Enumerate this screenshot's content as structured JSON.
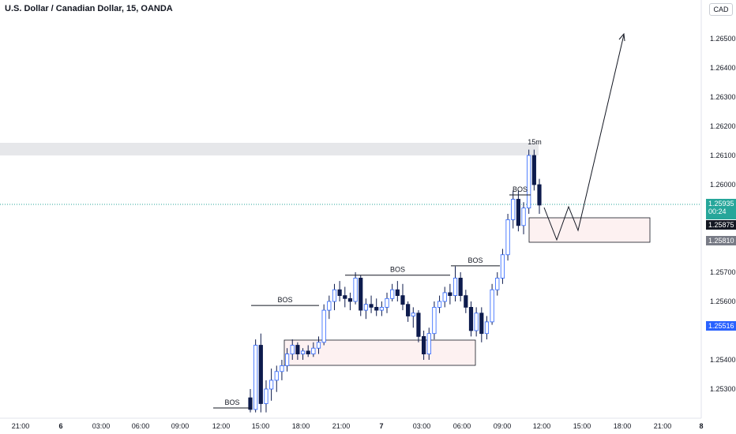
{
  "header": {
    "title": "U.S. Dollar / Canadian Dollar, 15, OANDA",
    "currency": "CAD"
  },
  "price_tags": {
    "current": "1.25935",
    "countdown": "00:24",
    "level_a": "1.25875",
    "level_b": "1.25810",
    "level_c": "1.25516"
  },
  "colors": {
    "candle_body": "#2962ff",
    "candle_dark": "#0d1b4d",
    "zone_fill": "#fdf1f1",
    "supply_band": "#e6e7ea",
    "teal": "#26a69a",
    "navy": "#131722"
  },
  "chart_data": {
    "type": "candlestick",
    "title": "U.S. Dollar / Canadian Dollar, 15, OANDA",
    "x_tick_labels": [
      "21:00",
      "6",
      "03:00",
      "06:00",
      "09:00",
      "12:00",
      "15:00",
      "18:00",
      "21:00",
      "7",
      "03:00",
      "06:00",
      "09:00",
      "12:00",
      "15:00",
      "18:00",
      "21:00",
      "8"
    ],
    "y_tick_labels": [
      "1.26500",
      "1.26400",
      "1.26300",
      "1.26200",
      "1.26100",
      "1.26000",
      "1.25700",
      "1.25600",
      "1.25400",
      "1.25300"
    ],
    "ylim": [
      1.2524,
      1.2675
    ],
    "annotations": [
      {
        "text": "BOS",
        "level": 1.25235,
        "from": "12:00",
        "to": "15:00"
      },
      {
        "text": "BOS",
        "level": 1.25586,
        "from": "15:00",
        "to": "18:00"
      },
      {
        "text": "BOS",
        "level": 1.2569,
        "from": "21:00",
        "to": "06:00"
      },
      {
        "text": "BOS",
        "level": 1.25722,
        "from": "06:00",
        "to": "09:00"
      },
      {
        "text": "BOS",
        "level": 1.25965,
        "from": "09:00",
        "to": "12:00"
      },
      {
        "text": "15m",
        "level": 1.26127,
        "from": "12:00",
        "to": "12:00"
      }
    ],
    "series": [
      {
        "ohlc": [
          [
            1.2527,
            1.253,
            1.2522,
            1.2523
          ],
          [
            1.2523,
            1.2547,
            1.2522,
            1.2545
          ],
          [
            1.2545,
            1.2549,
            1.2522,
            1.2525
          ],
          [
            1.2525,
            1.2533,
            1.2522,
            1.253
          ],
          [
            1.253,
            1.2537,
            1.2526,
            1.2533
          ],
          [
            1.2533,
            1.2538,
            1.2529,
            1.2536
          ],
          [
            1.2536,
            1.254,
            1.2533,
            1.2538
          ],
          [
            1.2538,
            1.2544,
            1.2536,
            1.2542
          ],
          [
            1.2542,
            1.2547,
            1.254,
            1.2545
          ],
          [
            1.2545,
            1.2546,
            1.254,
            1.2542
          ],
          [
            1.2542,
            1.2544,
            1.254,
            1.2543
          ],
          [
            1.2543,
            1.2545,
            1.2541,
            1.2542
          ],
          [
            1.2542,
            1.2546,
            1.2541,
            1.2544
          ],
          [
            1.2544,
            1.2548,
            1.2542,
            1.2546
          ],
          [
            1.2546,
            1.2559,
            1.2545,
            1.2557
          ],
          [
            1.2557,
            1.2562,
            1.2554,
            1.256
          ],
          [
            1.256,
            1.2566,
            1.2557,
            1.2564
          ],
          [
            1.2564,
            1.2567,
            1.256,
            1.2562
          ],
          [
            1.2562,
            1.2565,
            1.2558,
            1.2561
          ],
          [
            1.2561,
            1.2563,
            1.2557,
            1.256
          ],
          [
            1.256,
            1.257,
            1.2559,
            1.2568
          ],
          [
            1.2568,
            1.2569,
            1.2555,
            1.2557
          ],
          [
            1.2557,
            1.2561,
            1.2554,
            1.2559
          ],
          [
            1.2559,
            1.2562,
            1.2556,
            1.2558
          ],
          [
            1.2558,
            1.2561,
            1.2555,
            1.2557
          ],
          [
            1.2557,
            1.256,
            1.2555,
            1.2558
          ],
          [
            1.2558,
            1.2563,
            1.2556,
            1.2561
          ],
          [
            1.2561,
            1.2566,
            1.256,
            1.2564
          ],
          [
            1.2564,
            1.2567,
            1.256,
            1.2562
          ],
          [
            1.2562,
            1.2566,
            1.2557,
            1.2559
          ],
          [
            1.2559,
            1.256,
            1.2553,
            1.2555
          ],
          [
            1.2555,
            1.2558,
            1.2551,
            1.2556
          ],
          [
            1.2556,
            1.2557,
            1.2546,
            1.2548
          ],
          [
            1.2548,
            1.255,
            1.254,
            1.2542
          ],
          [
            1.2542,
            1.2551,
            1.254,
            1.2549
          ],
          [
            1.2549,
            1.256,
            1.2547,
            1.2558
          ],
          [
            1.2558,
            1.2562,
            1.2556,
            1.256
          ],
          [
            1.256,
            1.2565,
            1.2558,
            1.2563
          ],
          [
            1.2563,
            1.2566,
            1.2559,
            1.2562
          ],
          [
            1.2562,
            1.2572,
            1.256,
            1.2568
          ],
          [
            1.2568,
            1.257,
            1.256,
            1.2562
          ],
          [
            1.2562,
            1.2564,
            1.2556,
            1.2558
          ],
          [
            1.2558,
            1.256,
            1.2548,
            1.255
          ],
          [
            1.255,
            1.2558,
            1.2548,
            1.2556
          ],
          [
            1.2556,
            1.2558,
            1.2546,
            1.2549
          ],
          [
            1.2549,
            1.2555,
            1.2547,
            1.2553
          ],
          [
            1.2553,
            1.2566,
            1.2552,
            1.2564
          ],
          [
            1.2564,
            1.257,
            1.2562,
            1.2568
          ],
          [
            1.2568,
            1.2578,
            1.2566,
            1.2576
          ],
          [
            1.2576,
            1.259,
            1.2574,
            1.2588
          ],
          [
            1.2588,
            1.2598,
            1.2585,
            1.2595
          ],
          [
            1.2595,
            1.2598,
            1.2584,
            1.2586
          ],
          [
            1.2586,
            1.2594,
            1.2583,
            1.2592
          ],
          [
            1.2592,
            1.2612,
            1.259,
            1.261
          ],
          [
            1.261,
            1.2612,
            1.2598,
            1.26
          ],
          [
            1.26,
            1.2602,
            1.259,
            1.2593
          ]
        ]
      }
    ]
  }
}
